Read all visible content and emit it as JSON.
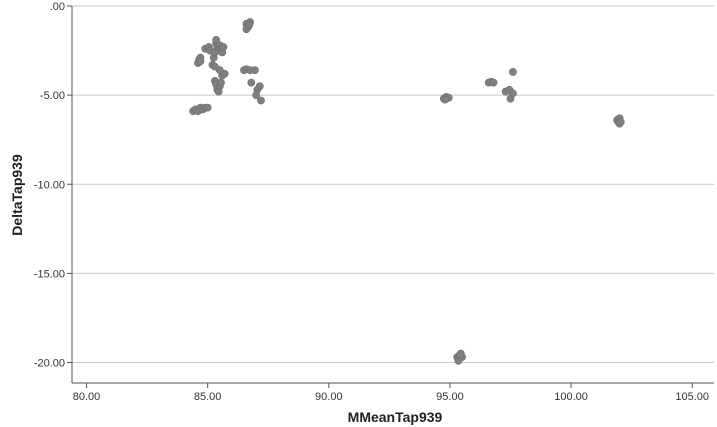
{
  "chart_data": {
    "type": "scatter",
    "title": "",
    "xlabel": "MMeanTap939",
    "ylabel": "DeltaTap939",
    "xlim": [
      79.4,
      105.9
    ],
    "ylim": [
      -21.15,
      0.0
    ],
    "grid": "horizontal",
    "x_ticks": [
      {
        "value": 80,
        "label": "80.00"
      },
      {
        "value": 85,
        "label": "85.00"
      },
      {
        "value": 90,
        "label": "90.00"
      },
      {
        "value": 95,
        "label": "95.00"
      },
      {
        "value": 100,
        "label": "100.00"
      },
      {
        "value": 105,
        "label": "105.00"
      }
    ],
    "y_ticks": [
      {
        "value": 0,
        "label": ".00"
      },
      {
        "value": -5,
        "label": "-5.00"
      },
      {
        "value": -10,
        "label": "-10.00"
      },
      {
        "value": -15,
        "label": "-15.00"
      },
      {
        "value": -20,
        "label": "-20.00"
      }
    ],
    "marker_color": "#808080",
    "gridline_color": "#c8c8c8",
    "axis_color": "#555555",
    "points": [
      {
        "x": 84.4,
        "y": -5.9
      },
      {
        "x": 84.5,
        "y": -5.8
      },
      {
        "x": 84.6,
        "y": -5.9
      },
      {
        "x": 84.7,
        "y": -5.7
      },
      {
        "x": 84.8,
        "y": -5.8
      },
      {
        "x": 84.9,
        "y": -5.7
      },
      {
        "x": 85.0,
        "y": -5.7
      },
      {
        "x": 84.6,
        "y": -3.2
      },
      {
        "x": 84.65,
        "y": -3.0
      },
      {
        "x": 84.7,
        "y": -2.9
      },
      {
        "x": 84.7,
        "y": -3.1
      },
      {
        "x": 84.9,
        "y": -2.4
      },
      {
        "x": 85.05,
        "y": -2.3
      },
      {
        "x": 85.1,
        "y": -2.5
      },
      {
        "x": 85.2,
        "y": -3.3
      },
      {
        "x": 85.25,
        "y": -2.9
      },
      {
        "x": 85.3,
        "y": -2.6
      },
      {
        "x": 85.35,
        "y": -2.1
      },
      {
        "x": 85.35,
        "y": -1.9
      },
      {
        "x": 85.4,
        "y": -2.3
      },
      {
        "x": 85.45,
        "y": -2.5
      },
      {
        "x": 85.5,
        "y": -2.2
      },
      {
        "x": 85.55,
        "y": -2.4
      },
      {
        "x": 85.6,
        "y": -2.6
      },
      {
        "x": 85.65,
        "y": -2.3
      },
      {
        "x": 85.3,
        "y": -4.2
      },
      {
        "x": 85.35,
        "y": -4.4
      },
      {
        "x": 85.4,
        "y": -4.7
      },
      {
        "x": 85.45,
        "y": -4.8
      },
      {
        "x": 85.5,
        "y": -4.5
      },
      {
        "x": 85.55,
        "y": -4.3
      },
      {
        "x": 85.6,
        "y": -3.9
      },
      {
        "x": 85.7,
        "y": -3.8
      },
      {
        "x": 85.3,
        "y": -3.4
      },
      {
        "x": 85.5,
        "y": -3.6
      },
      {
        "x": 86.5,
        "y": -3.6
      },
      {
        "x": 86.6,
        "y": -3.55
      },
      {
        "x": 86.75,
        "y": -3.6
      },
      {
        "x": 86.95,
        "y": -3.6
      },
      {
        "x": 86.8,
        "y": -4.3
      },
      {
        "x": 87.05,
        "y": -4.7
      },
      {
        "x": 87.15,
        "y": -4.5
      },
      {
        "x": 87.0,
        "y": -5.0
      },
      {
        "x": 87.2,
        "y": -5.3
      },
      {
        "x": 86.6,
        "y": -1.0
      },
      {
        "x": 86.65,
        "y": -1.2
      },
      {
        "x": 86.7,
        "y": -1.1
      },
      {
        "x": 86.75,
        "y": -0.9
      },
      {
        "x": 86.6,
        "y": -1.3
      },
      {
        "x": 86.72,
        "y": -1.05
      },
      {
        "x": 94.75,
        "y": -5.2
      },
      {
        "x": 94.85,
        "y": -5.1
      },
      {
        "x": 94.95,
        "y": -5.15
      },
      {
        "x": 94.8,
        "y": -5.25
      },
      {
        "x": 96.6,
        "y": -4.3
      },
      {
        "x": 96.7,
        "y": -4.25
      },
      {
        "x": 96.8,
        "y": -4.3
      },
      {
        "x": 97.3,
        "y": -4.8
      },
      {
        "x": 97.45,
        "y": -4.7
      },
      {
        "x": 97.5,
        "y": -5.2
      },
      {
        "x": 97.6,
        "y": -4.9
      },
      {
        "x": 97.6,
        "y": -3.7
      },
      {
        "x": 101.9,
        "y": -6.4
      },
      {
        "x": 101.95,
        "y": -6.5
      },
      {
        "x": 102.0,
        "y": -6.6
      },
      {
        "x": 102.0,
        "y": -6.3
      },
      {
        "x": 102.05,
        "y": -6.5
      },
      {
        "x": 95.3,
        "y": -19.7
      },
      {
        "x": 95.35,
        "y": -19.8
      },
      {
        "x": 95.4,
        "y": -19.6
      },
      {
        "x": 95.45,
        "y": -19.5
      },
      {
        "x": 95.5,
        "y": -19.7
      },
      {
        "x": 95.35,
        "y": -19.9
      },
      {
        "x": 95.42,
        "y": -19.55
      }
    ]
  }
}
